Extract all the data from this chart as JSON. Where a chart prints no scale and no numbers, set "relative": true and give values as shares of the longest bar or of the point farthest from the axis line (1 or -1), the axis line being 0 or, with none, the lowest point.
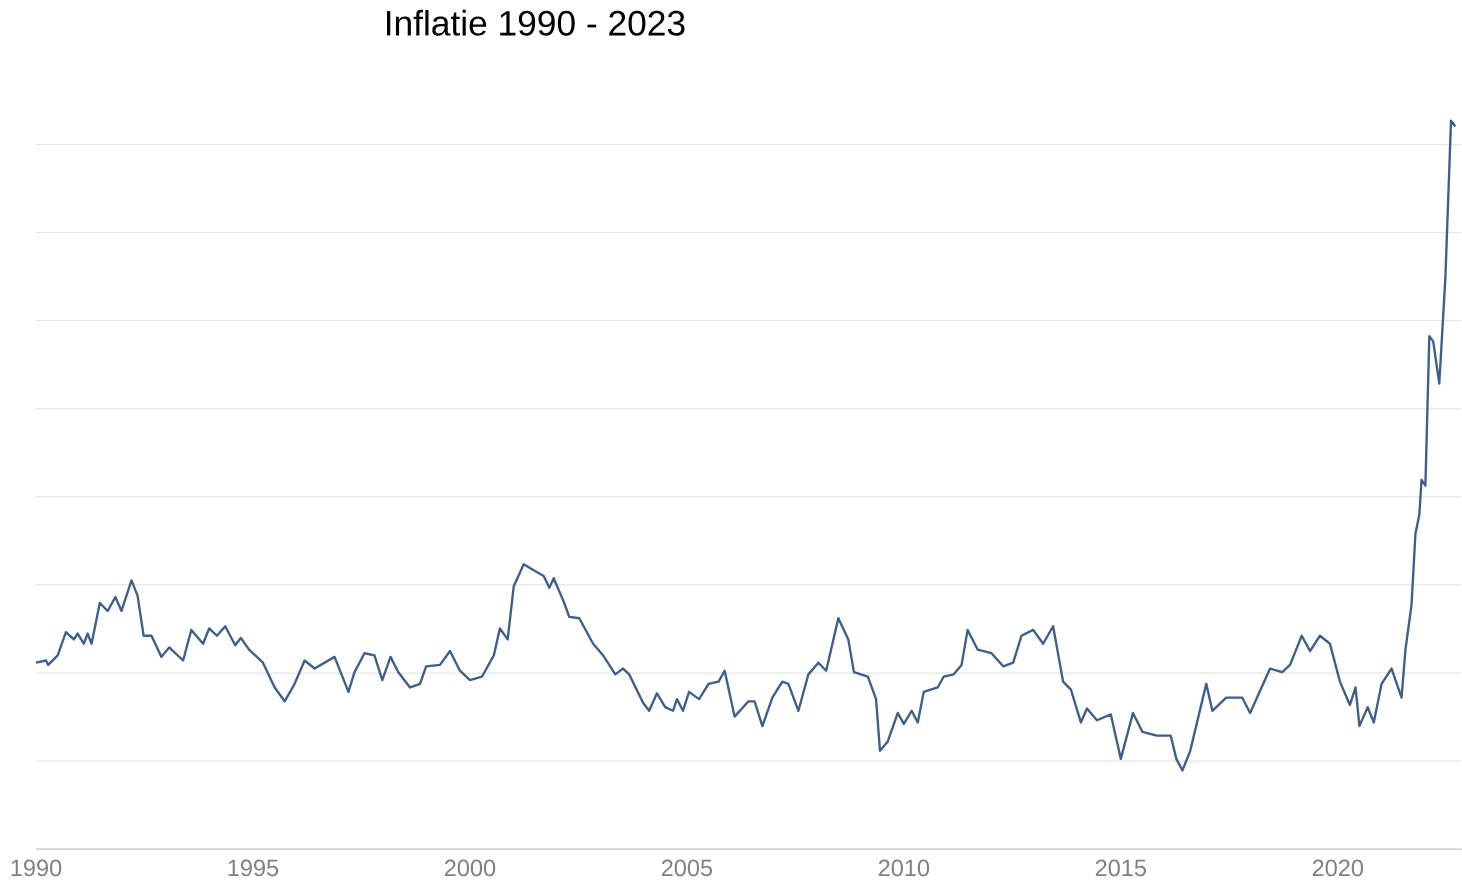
{
  "chart_data": {
    "type": "line",
    "title": "Inflatie 1990 - 2023",
    "relative": true,
    "grid": "y",
    "color": "#3d5f8a",
    "xlim": [
      1990,
      2022.85
    ],
    "xticks": [
      1990,
      1995,
      2000,
      2005,
      2010,
      2015,
      2020
    ],
    "x": [
      1990.0,
      1990.23,
      1990.28,
      1990.5,
      1990.69,
      1990.87,
      1990.96,
      1991.1,
      1991.19,
      1991.28,
      1991.47,
      1991.65,
      1991.83,
      1991.97,
      1992.2,
      1992.34,
      1992.48,
      1992.66,
      1992.89,
      1993.07,
      1993.39,
      1993.58,
      1993.85,
      1993.99,
      1994.17,
      1994.36,
      1994.59,
      1994.72,
      1994.91,
      1995.23,
      1995.5,
      1995.73,
      1995.96,
      1996.19,
      1996.42,
      1996.65,
      1996.88,
      1997.02,
      1997.2,
      1997.34,
      1997.57,
      1997.8,
      1997.98,
      1998.17,
      1998.35,
      1998.62,
      1998.85,
      1998.99,
      1999.31,
      1999.54,
      1999.77,
      2000.0,
      2000.28,
      2000.55,
      2000.69,
      2000.87,
      2001.01,
      2001.24,
      2001.47,
      2001.7,
      2001.83,
      2001.93,
      2002.16,
      2002.29,
      2002.52,
      2002.84,
      2003.07,
      2003.35,
      2003.53,
      2003.67,
      2003.99,
      2004.13,
      2004.31,
      2004.5,
      2004.68,
      2004.77,
      2004.91,
      2005.05,
      2005.28,
      2005.5,
      2005.73,
      2005.87,
      2006.1,
      2006.42,
      2006.56,
      2006.74,
      2006.97,
      2007.2,
      2007.34,
      2007.57,
      2007.8,
      2008.03,
      2008.21,
      2008.49,
      2008.72,
      2008.85,
      2009.17,
      2009.36,
      2009.45,
      2009.63,
      2009.86,
      2010.0,
      2010.18,
      2010.32,
      2010.46,
      2010.78,
      2010.92,
      2011.15,
      2011.33,
      2011.47,
      2011.7,
      2012.02,
      2012.29,
      2012.52,
      2012.71,
      2012.98,
      2013.21,
      2013.44,
      2013.67,
      2013.85,
      2014.08,
      2014.22,
      2014.45,
      2014.77,
      2015.0,
      2015.28,
      2015.5,
      2015.83,
      2016.15,
      2016.28,
      2016.42,
      2016.6,
      2016.97,
      2017.11,
      2017.43,
      2017.8,
      2017.98,
      2018.44,
      2018.72,
      2018.9,
      2019.17,
      2019.36,
      2019.59,
      2019.82,
      2020.05,
      2020.28,
      2020.41,
      2020.5,
      2020.69,
      2020.83,
      2021.01,
      2021.24,
      2021.47,
      2021.56,
      2021.7,
      2021.79,
      2021.88,
      2021.93,
      2022.02,
      2022.11,
      2022.2,
      2022.34,
      2022.48,
      2022.61,
      2022.71
    ],
    "values": [
      0.256,
      0.259,
      0.253,
      0.266,
      0.298,
      0.288,
      0.296,
      0.282,
      0.296,
      0.282,
      0.338,
      0.327,
      0.346,
      0.327,
      0.369,
      0.348,
      0.293,
      0.293,
      0.264,
      0.277,
      0.259,
      0.301,
      0.282,
      0.303,
      0.293,
      0.306,
      0.28,
      0.29,
      0.274,
      0.256,
      0.222,
      0.203,
      0.227,
      0.259,
      0.248,
      0.256,
      0.264,
      0.243,
      0.216,
      0.243,
      0.269,
      0.266,
      0.232,
      0.264,
      0.243,
      0.222,
      0.227,
      0.251,
      0.253,
      0.272,
      0.245,
      0.232,
      0.237,
      0.266,
      0.303,
      0.288,
      0.361,
      0.391,
      0.383,
      0.375,
      0.359,
      0.372,
      0.34,
      0.319,
      0.317,
      0.282,
      0.266,
      0.24,
      0.248,
      0.24,
      0.201,
      0.19,
      0.214,
      0.195,
      0.19,
      0.206,
      0.19,
      0.216,
      0.206,
      0.227,
      0.23,
      0.245,
      0.182,
      0.203,
      0.203,
      0.169,
      0.208,
      0.23,
      0.227,
      0.19,
      0.24,
      0.256,
      0.245,
      0.317,
      0.288,
      0.243,
      0.237,
      0.206,
      0.135,
      0.148,
      0.187,
      0.172,
      0.19,
      0.174,
      0.216,
      0.222,
      0.237,
      0.24,
      0.253,
      0.301,
      0.274,
      0.269,
      0.251,
      0.256,
      0.293,
      0.301,
      0.282,
      0.306,
      0.23,
      0.219,
      0.174,
      0.193,
      0.177,
      0.185,
      0.124,
      0.187,
      0.161,
      0.156,
      0.156,
      0.124,
      0.108,
      0.135,
      0.227,
      0.19,
      0.208,
      0.208,
      0.187,
      0.248,
      0.243,
      0.253,
      0.293,
      0.272,
      0.293,
      0.282,
      0.23,
      0.198,
      0.222,
      0.169,
      0.195,
      0.174,
      0.227,
      0.248,
      0.208,
      0.274,
      0.335,
      0.433,
      0.459,
      0.507,
      0.499,
      0.704,
      0.697,
      0.639,
      0.784,
      1.0,
      0.992
    ]
  }
}
